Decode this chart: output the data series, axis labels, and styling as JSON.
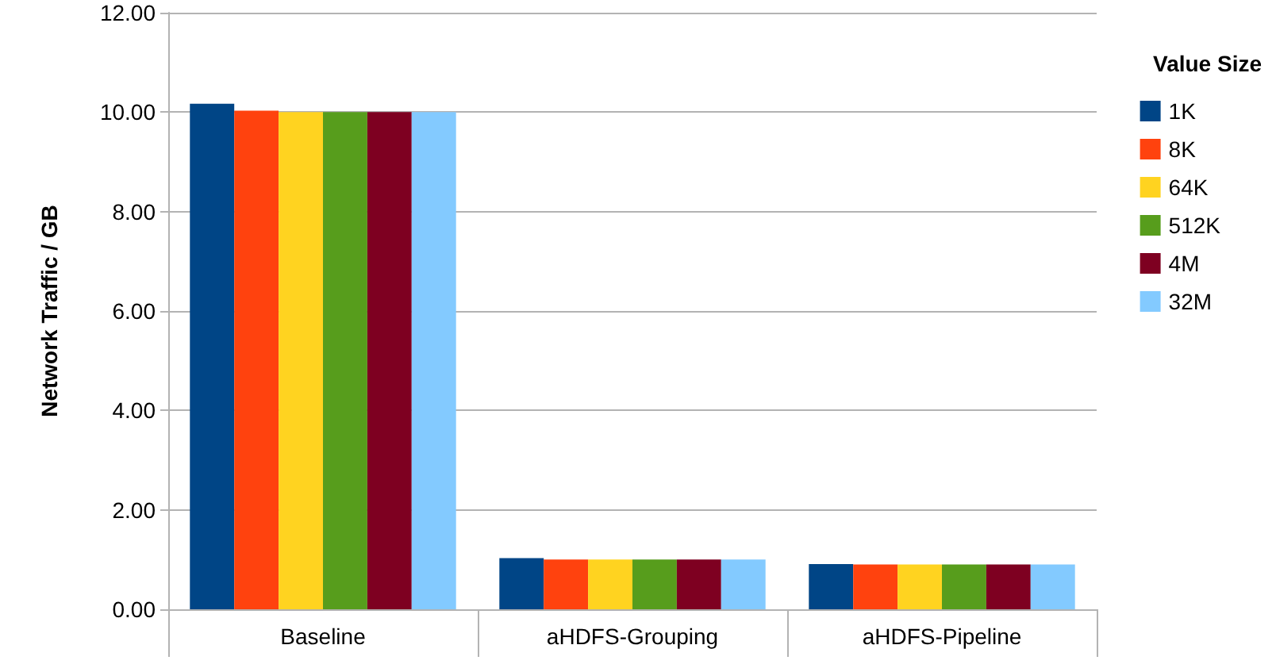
{
  "chart_data": {
    "type": "bar",
    "ylabel": "Network Traffic / GB",
    "legend_title": "Value Size",
    "categories": [
      "Baseline",
      "aHDFS-Grouping",
      "aHDFS-Pipeline"
    ],
    "series": [
      {
        "name": "1K",
        "color": "#004586",
        "values": [
          10.17,
          1.03,
          0.91
        ]
      },
      {
        "name": "8K",
        "color": "#ff420e",
        "values": [
          10.03,
          1.0,
          0.9
        ]
      },
      {
        "name": "64K",
        "color": "#ffd320",
        "values": [
          10.0,
          1.0,
          0.9
        ]
      },
      {
        "name": "512K",
        "color": "#579d1c",
        "values": [
          10.0,
          1.0,
          0.9
        ]
      },
      {
        "name": "4M",
        "color": "#7e0021",
        "values": [
          10.0,
          1.0,
          0.9
        ]
      },
      {
        "name": "32M",
        "color": "#83caff",
        "values": [
          10.0,
          1.0,
          0.9
        ]
      }
    ],
    "ylim": [
      0,
      12
    ],
    "yticks": [
      {
        "value": 0,
        "label": "0.00"
      },
      {
        "value": 2,
        "label": "2.00"
      },
      {
        "value": 4,
        "label": "4.00"
      },
      {
        "value": 6,
        "label": "6.00"
      },
      {
        "value": 8,
        "label": "8.00"
      },
      {
        "value": 10,
        "label": "10.00"
      },
      {
        "value": 12,
        "label": "12.00"
      }
    ],
    "grid": "y",
    "legend": "right"
  }
}
